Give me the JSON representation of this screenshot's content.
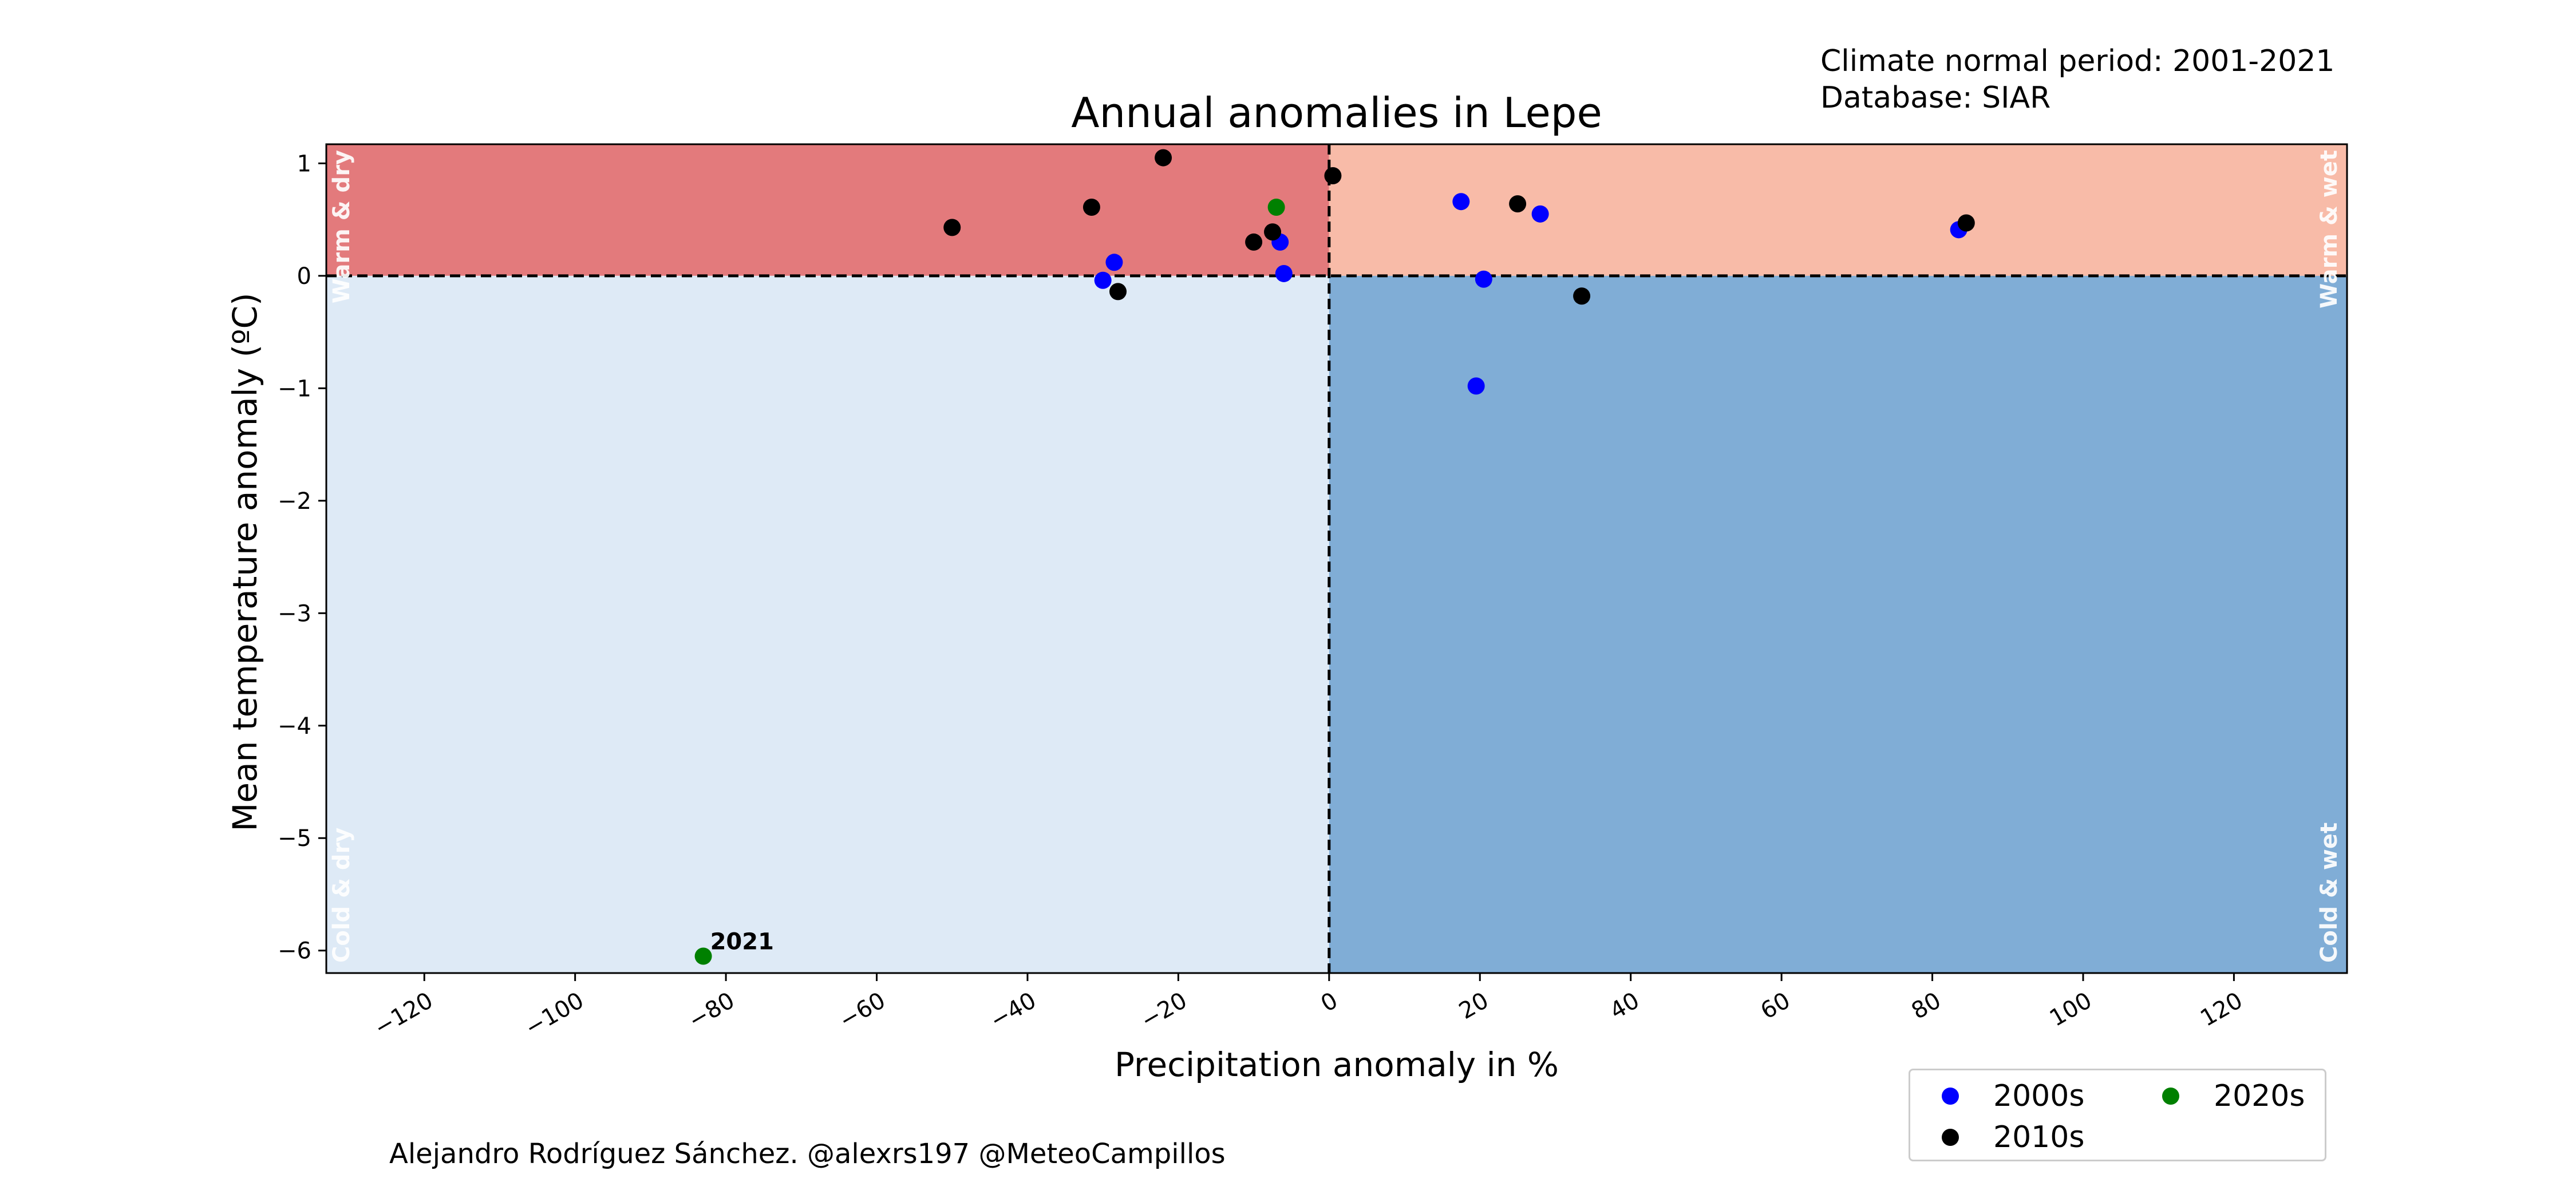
{
  "annotations": {
    "normal_period": "Climate normal period: 2001-2021",
    "database": "Database: SIAR",
    "credit": "Alejandro Rodríguez Sánchez. @alexrs197 @MeteoCampillos"
  },
  "chart_data": {
    "type": "scatter",
    "title": "Annual anomalies in Lepe",
    "xlabel": "Precipitation anomaly in %",
    "ylabel": "Mean temperature anomaly (ºC)",
    "xlim": [
      -133,
      135
    ],
    "ylim": [
      -6.2,
      1.17
    ],
    "xticks": [
      -120,
      -100,
      -80,
      -60,
      -40,
      -20,
      0,
      20,
      40,
      60,
      80,
      100,
      120
    ],
    "xtick_labels": [
      "−120",
      "−100",
      "−80",
      "−60",
      "−40",
      "−20",
      "0",
      "20",
      "40",
      "60",
      "80",
      "100",
      "120"
    ],
    "yticks": [
      1,
      0,
      -1,
      -2,
      -3,
      -4,
      -5,
      -6
    ],
    "ytick_labels": [
      "1",
      "0",
      "−1",
      "−2",
      "−3",
      "−4",
      "−5",
      "−6"
    ],
    "grid": false,
    "quadrants": [
      {
        "label": "Warm & dry",
        "color": "#e37a7c",
        "x": [
          -133,
          0
        ],
        "y": [
          0,
          1.17
        ]
      },
      {
        "label": "Warm & wet",
        "color": "#f8bba8",
        "x": [
          0,
          135
        ],
        "y": [
          0,
          1.17
        ]
      },
      {
        "label": "Cold & dry",
        "color": "#deeaf6",
        "x": [
          -133,
          0
        ],
        "y": [
          -6.2,
          0
        ]
      },
      {
        "label": "Cold & wet",
        "color": "#80add6",
        "x": [
          0,
          135
        ],
        "y": [
          -6.2,
          0
        ]
      }
    ],
    "reference_lines": {
      "x": 0,
      "y": 0,
      "style": "dashed"
    },
    "series": [
      {
        "name": "2000s",
        "color": "#0000ff",
        "points": [
          [
            17.5,
            0.66
          ],
          [
            28,
            0.55
          ],
          [
            -28.5,
            0.12
          ],
          [
            -30,
            -0.04
          ],
          [
            -6.5,
            0.3
          ],
          [
            -6,
            0.02
          ],
          [
            20.5,
            -0.03
          ],
          [
            19.5,
            -0.98
          ],
          [
            83.5,
            0.41
          ]
        ]
      },
      {
        "name": "2010s",
        "color": "#000000",
        "points": [
          [
            -50,
            0.43
          ],
          [
            -31.5,
            0.61
          ],
          [
            -22,
            1.05
          ],
          [
            -28,
            -0.14
          ],
          [
            -10,
            0.3
          ],
          [
            -7.5,
            0.39
          ],
          [
            0.5,
            0.89
          ],
          [
            25,
            0.64
          ],
          [
            33.5,
            -0.18
          ],
          [
            84.5,
            0.47
          ]
        ]
      },
      {
        "name": "2020s",
        "color": "#008000",
        "points": [
          [
            -7,
            0.61
          ],
          [
            -83,
            -6.05
          ]
        ]
      }
    ],
    "point_labels": [
      {
        "text": "2021",
        "x": -83,
        "y": -6.05
      }
    ],
    "legend": {
      "position": "bottom-right",
      "columns": 2
    }
  }
}
